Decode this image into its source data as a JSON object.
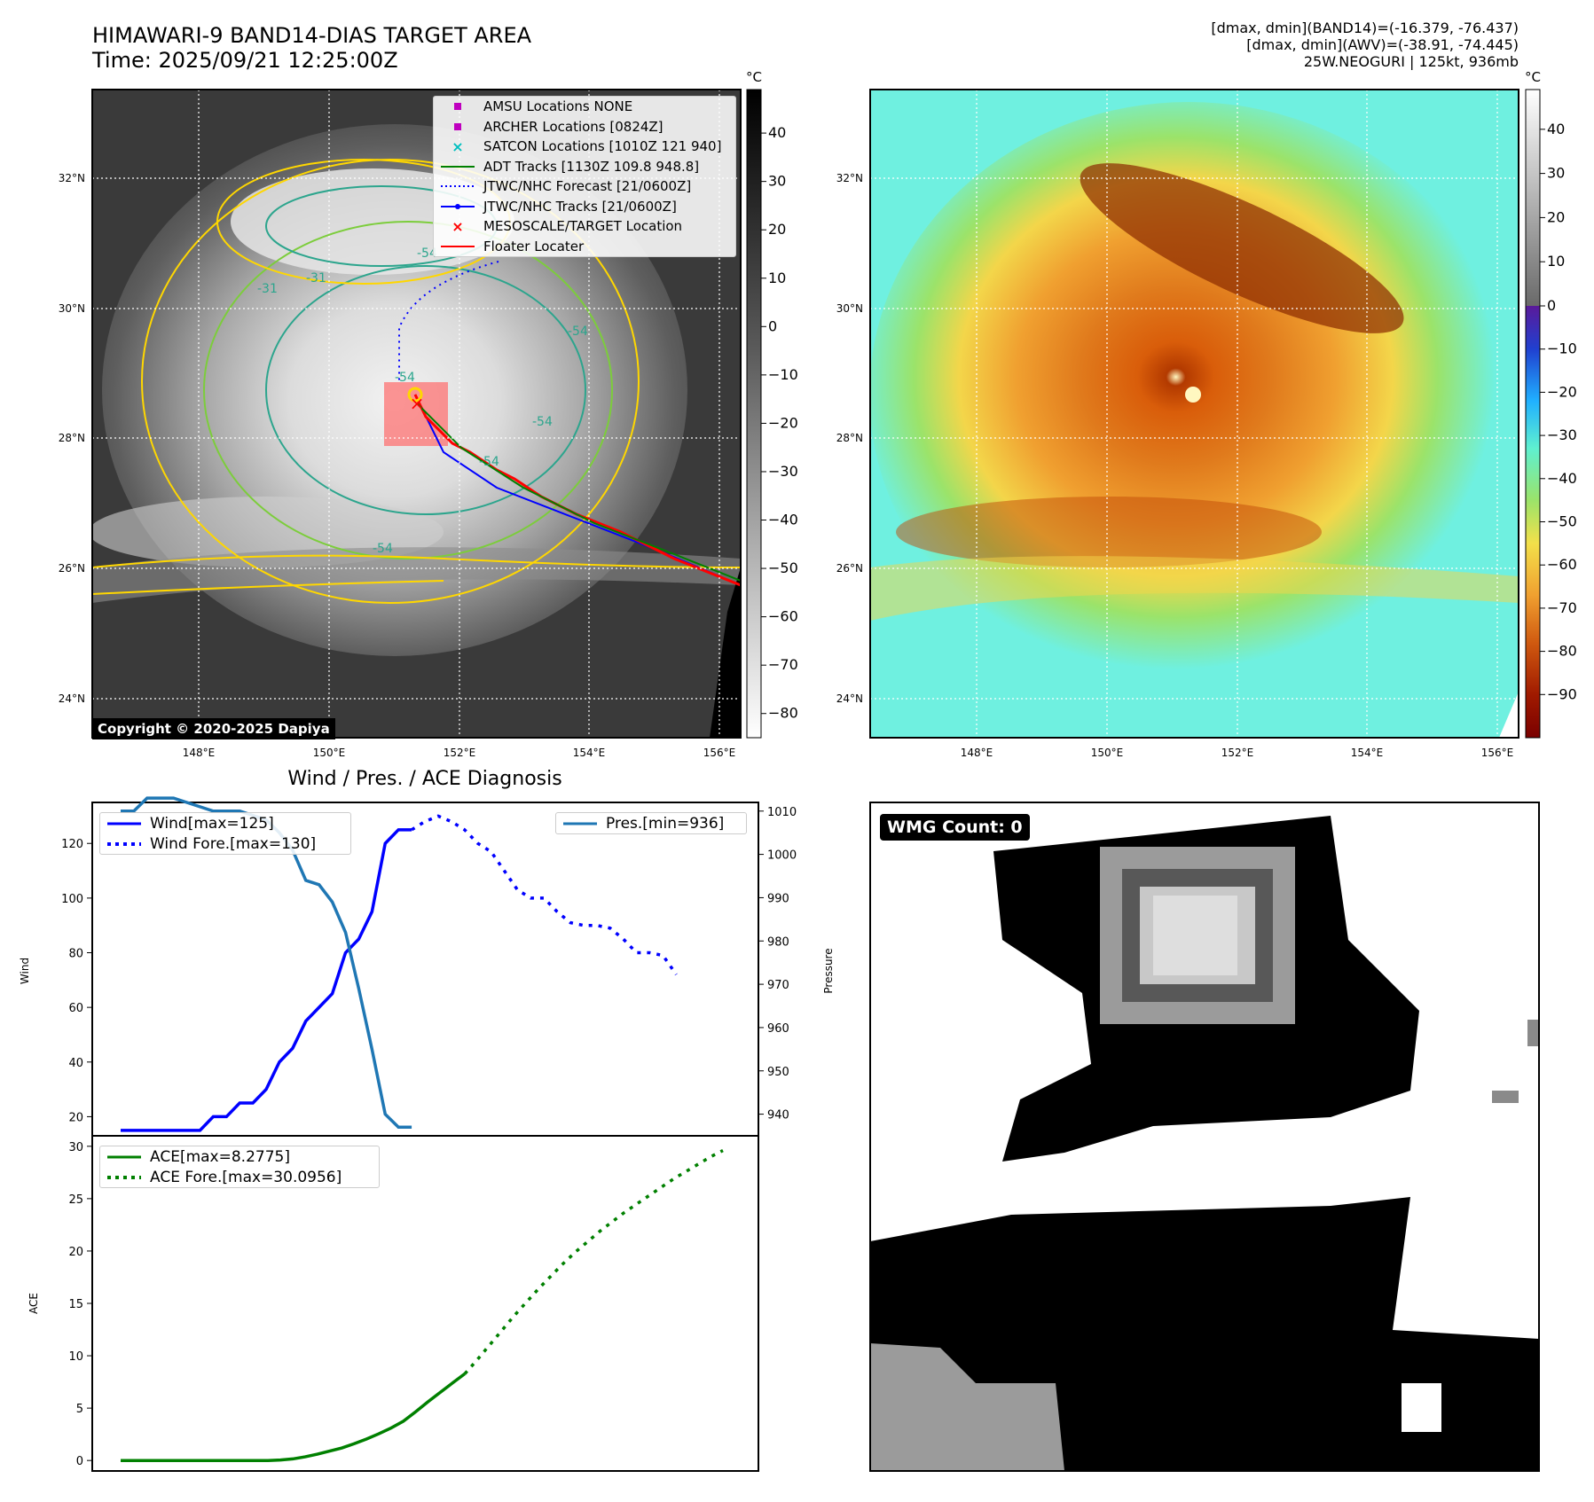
{
  "header": {
    "title": "HIMAWARI-9 BAND14-DIAS TARGET AREA",
    "time": "Time: 2025/09/21 12:25:00Z",
    "info_line1": "[dmax, dmin](BAND14)=(-16.379, -76.437)",
    "info_line2": "[dmax, dmin](AWV)=(-38.91, -74.445)",
    "info_line3": "25W.NEOGURI | 125kt, 936mb"
  },
  "map": {
    "lon_ticks": [
      "148°E",
      "150°E",
      "152°E",
      "154°E",
      "156°E"
    ],
    "lat_ticks": [
      "32°N",
      "30°N",
      "28°N",
      "26°N",
      "24°N"
    ],
    "copyright": "Copyright © 2020-2025 Dapiya",
    "contour_labels": [
      "-54",
      "-31",
      "-54",
      "-54",
      "-54",
      "-54",
      "-31",
      "-54"
    ],
    "legend": [
      {
        "label": "AMSU Locations NONE",
        "symbol": "square",
        "color": "#bf00bf"
      },
      {
        "label": "ARCHER Locations [0824Z]",
        "symbol": "square",
        "color": "#bf00bf"
      },
      {
        "label": "SATCON Locations [1010Z 121 940]",
        "symbol": "x",
        "color": "#00bfbf"
      },
      {
        "label": "ADT Tracks [1130Z 109.8 948.8]",
        "symbol": "line",
        "color": "#008000"
      },
      {
        "label": "JTWC/NHC Forecast [21/0600Z]",
        "symbol": "dotted",
        "color": "#0000ff"
      },
      {
        "label": "JTWC/NHC Tracks [21/0600Z]",
        "symbol": "line-dot",
        "color": "#0000ff"
      },
      {
        "label": "MESOSCALE/TARGET Location",
        "symbol": "x",
        "color": "#ff0000"
      },
      {
        "label": "Floater Locater",
        "symbol": "line",
        "color": "#ff0000"
      }
    ]
  },
  "colorbars": {
    "unit": "°C",
    "gray_ticks": [
      "40",
      "30",
      "20",
      "10",
      "0",
      "−10",
      "−20",
      "−30",
      "−40",
      "−50",
      "−60",
      "−70",
      "−80"
    ],
    "color_ticks": [
      "40",
      "30",
      "20",
      "10",
      "0",
      "−10",
      "−20",
      "−30",
      "−40",
      "−50",
      "−60",
      "−70",
      "−80",
      "−90"
    ]
  },
  "wmg": {
    "label": "WMG Count: 0"
  },
  "colors": {
    "wind": "#0000ff",
    "pressure": "#1f77b4",
    "ace": "#008000",
    "contour_warm": "#ffd700",
    "contour_mid": "#7ccd3b",
    "contour_cold": "#2ca58d"
  },
  "chart_data": [
    {
      "type": "line",
      "title": "Wind / Pres. / ACE Diagnosis",
      "ylabel": "Wind",
      "y2label": "Pressure",
      "ylim": [
        13,
        135
      ],
      "y2lim": [
        935,
        1012
      ],
      "yticks": [
        20,
        40,
        60,
        80,
        100,
        120
      ],
      "y2ticks": [
        940,
        950,
        960,
        970,
        980,
        990,
        1000,
        1010
      ],
      "x": [
        0,
        1,
        2,
        3,
        4,
        5,
        6,
        7,
        8,
        9,
        10,
        11,
        12,
        13,
        14,
        15,
        16,
        17,
        18,
        19,
        20,
        21,
        22,
        23,
        24,
        25,
        26,
        27,
        28,
        29,
        30,
        31,
        32,
        33,
        34,
        35,
        36,
        37,
        38,
        39,
        40,
        41,
        42,
        43,
        44,
        45,
        46,
        47,
        48,
        49
      ],
      "series": [
        {
          "name": "Wind[max=125]",
          "axis": "left",
          "style": "solid",
          "values": [
            15,
            15,
            15,
            15,
            15,
            15,
            15,
            20,
            20,
            25,
            25,
            30,
            40,
            45,
            55,
            60,
            65,
            80,
            85,
            95,
            120,
            125,
            125,
            null,
            null,
            null,
            null,
            null,
            null,
            null,
            null,
            null,
            null,
            null,
            null,
            null,
            null,
            null,
            null,
            null,
            null,
            null,
            null,
            null,
            null,
            null,
            null,
            null,
            null,
            null
          ]
        },
        {
          "name": "Wind Fore.[max=130]",
          "axis": "left",
          "style": "dotted",
          "values": [
            null,
            null,
            null,
            null,
            null,
            null,
            null,
            null,
            null,
            null,
            null,
            null,
            null,
            null,
            null,
            null,
            null,
            null,
            null,
            null,
            null,
            null,
            125,
            128,
            130,
            128,
            125,
            120,
            117,
            110,
            103,
            100,
            100,
            95,
            91,
            90,
            90,
            89,
            85,
            80,
            80,
            79,
            72,
            null,
            null,
            null,
            null,
            null,
            null,
            null
          ]
        },
        {
          "name": "Pres.[min=936]",
          "axis": "right",
          "style": "solid",
          "values": [
            1010,
            1010,
            1013,
            1013,
            1013,
            1012,
            1011,
            1010,
            1010,
            1010,
            1009,
            1008,
            1005,
            1001,
            994,
            993,
            989,
            982,
            969,
            955,
            940,
            937,
            937,
            null,
            null,
            null,
            null,
            null,
            null,
            null,
            null,
            null,
            null,
            null,
            null,
            null,
            null,
            null,
            null,
            null,
            null,
            null,
            null,
            null,
            null,
            null,
            null,
            null,
            null,
            null
          ]
        }
      ]
    },
    {
      "type": "line",
      "ylabel": "ACE",
      "ylim": [
        -1,
        31
      ],
      "yticks": [
        0,
        5,
        10,
        15,
        20,
        25,
        30
      ],
      "x": [
        0,
        1,
        2,
        3,
        4,
        5,
        6,
        7,
        8,
        9,
        10,
        11,
        12,
        13,
        14,
        15,
        16,
        17,
        18,
        19,
        20,
        21,
        22,
        23,
        24,
        25,
        26,
        27,
        28,
        29,
        30,
        31,
        32,
        33,
        34,
        35,
        36,
        37,
        38,
        39,
        40,
        41,
        42,
        43,
        44,
        45,
        46,
        47,
        48,
        49
      ],
      "series": [
        {
          "name": "ACE[max=8.2775]",
          "style": "solid",
          "values": [
            0,
            0,
            0,
            0,
            0,
            0,
            0,
            0,
            0,
            0,
            0,
            0,
            0,
            0.05,
            0.15,
            0.35,
            0.6,
            0.9,
            1.2,
            1.6,
            2.05,
            2.55,
            3.1,
            3.75,
            4.65,
            5.6,
            6.5,
            7.4,
            8.2775,
            null,
            null,
            null,
            null,
            null,
            null,
            null,
            null,
            null,
            null,
            null,
            null,
            null,
            null,
            null,
            null,
            null,
            null,
            null,
            null,
            null
          ]
        },
        {
          "name": "ACE Fore.[max=30.0956]",
          "style": "dotted",
          "values": [
            null,
            null,
            null,
            null,
            null,
            null,
            null,
            null,
            null,
            null,
            null,
            null,
            null,
            null,
            null,
            null,
            null,
            null,
            null,
            null,
            null,
            null,
            null,
            null,
            null,
            null,
            null,
            null,
            8.2775,
            9.6,
            11,
            12.4,
            13.8,
            15.1,
            16.4,
            17.6,
            18.8,
            19.9,
            20.9,
            21.9,
            22.8,
            23.7,
            24.5,
            25.3,
            26.1,
            26.9,
            27.6,
            28.3,
            29.0,
            29.6
          ]
        }
      ]
    }
  ]
}
